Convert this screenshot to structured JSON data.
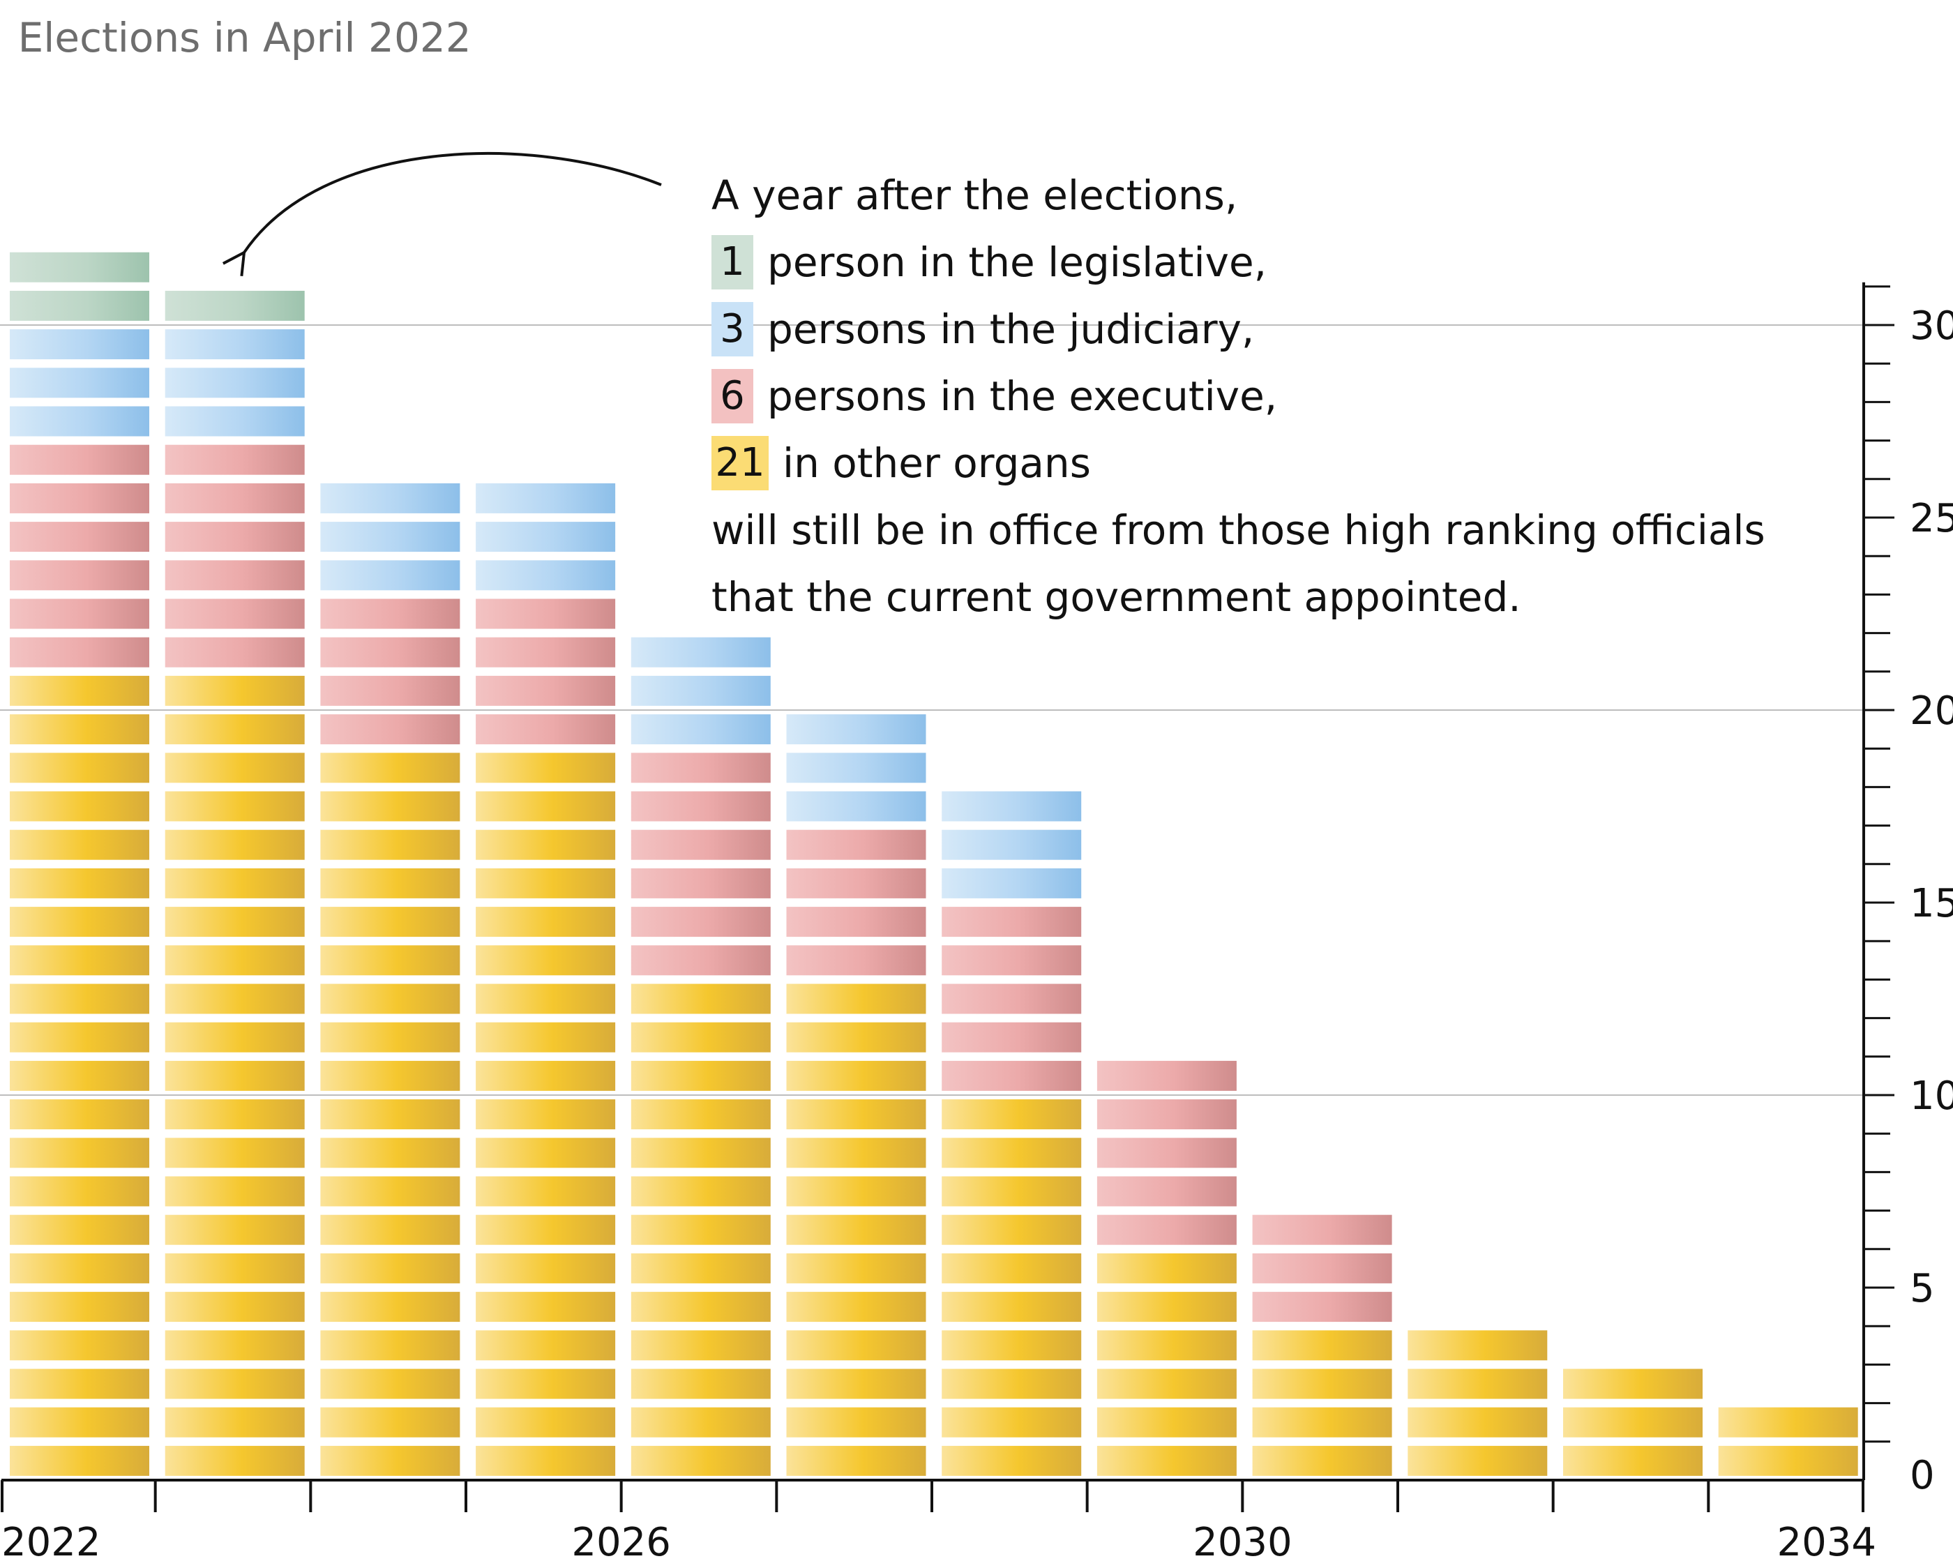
{
  "chart_data": {
    "type": "bar",
    "stacked": true,
    "unit_blocks": true,
    "categories": [
      "2022",
      "2023",
      "2024",
      "2025",
      "2026",
      "2027",
      "2028",
      "2029",
      "2030",
      "2031",
      "2032",
      "2033"
    ],
    "series": [
      {
        "name": "other organs",
        "color": "#f5c842",
        "values": [
          21,
          21,
          19,
          19,
          13,
          13,
          10,
          6,
          4,
          4,
          3,
          2
        ]
      },
      {
        "name": "executive",
        "color": "#e8a0a0",
        "values": [
          6,
          6,
          4,
          4,
          6,
          4,
          5,
          5,
          3,
          0,
          0,
          0
        ]
      },
      {
        "name": "judiciary",
        "color": "#9dc9ef",
        "values": [
          3,
          3,
          3,
          3,
          3,
          3,
          3,
          0,
          0,
          0,
          0,
          0
        ]
      },
      {
        "name": "legislative",
        "color": "#a8cbb9",
        "values": [
          2,
          1,
          0,
          0,
          0,
          0,
          0,
          0,
          0,
          0,
          0,
          0
        ]
      }
    ],
    "x_tick_labels": [
      "2022",
      "2026",
      "2030",
      "2034"
    ],
    "x_tick_label_values": [
      2022,
      2026,
      2030,
      2034
    ],
    "x_range": [
      2022,
      2034
    ],
    "y_range": [
      0,
      31
    ],
    "y_tick_labels": [
      "0",
      "5",
      "10",
      "15",
      "20",
      "25",
      "30"
    ],
    "y_tick_values": [
      0,
      5,
      10,
      15,
      20,
      25,
      30
    ],
    "y_gridlines": [
      10,
      20,
      30
    ],
    "y_axis_position": "right",
    "annotation": {
      "marker_label": "Elections in April 2022",
      "marker_x": 2022.25,
      "intro": "A year after the elections,",
      "items": [
        {
          "count": "1",
          "text": "person in the legislative,",
          "color": "#cfe1d6"
        },
        {
          "count": "3",
          "text": "persons in the judiciary,",
          "color": "#c9e2f7"
        },
        {
          "count": "6",
          "text": "persons in the executive,",
          "color": "#f3c1c1"
        },
        {
          "count": "21",
          "text": "in other organs",
          "color": "#fbdc74"
        }
      ],
      "outro_1": "will still be in office from those high ranking officials",
      "outro_2": "that the current government appointed."
    }
  }
}
